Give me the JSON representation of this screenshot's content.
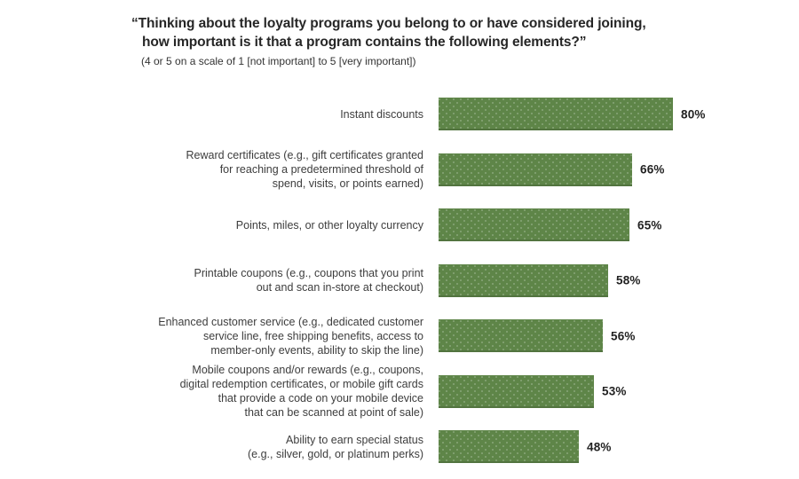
{
  "header": {
    "title": "“Thinking about the loyalty programs you belong to or have considered joining,\nhow important is it that a program contains the following elements?”",
    "subtitle": "(4 or 5 on a scale of 1 [not important] to 5 [very important])"
  },
  "colors": {
    "bar_fill": "#5e8548",
    "bar_dot_highlight": "#7da166",
    "title_text": "#262626",
    "label_text": "#3d3d3d",
    "value_text": "#222222",
    "background": "#ffffff"
  },
  "chart_data": {
    "type": "bar",
    "orientation": "horizontal",
    "title": "“Thinking about the loyalty programs you belong to or have considered joining, how important is it that a program contains the following elements?”",
    "subtitle": "(4 or 5 on a scale of 1 [not important] to 5 [very important])",
    "unit": "%",
    "xlim": [
      0,
      100
    ],
    "axis_visible": false,
    "grid": false,
    "legend": null,
    "categories": [
      "Instant discounts",
      "Reward certificates (e.g., gift certificates granted\nfor reaching a predetermined threshold of\nspend, visits, or points earned)",
      "Points, miles, or other loyalty currency",
      "Printable coupons (e.g., coupons that you print\nout and scan in-store at checkout)",
      "Enhanced customer service (e.g., dedicated customer\nservice line, free shipping benefits, access to\nmember-only events, ability to skip the line)",
      "Mobile coupons and/or rewards (e.g., coupons,\ndigital redemption certificates, or mobile gift cards\nthat provide a code on your mobile device\nthat can be scanned at point of sale)",
      "Ability to earn special status\n(e.g., silver, gold, or platinum perks)"
    ],
    "values": [
      80,
      66,
      65,
      58,
      56,
      53,
      48
    ],
    "value_labels": [
      "80%",
      "66%",
      "65%",
      "58%",
      "56%",
      "53%",
      "48%"
    ]
  }
}
